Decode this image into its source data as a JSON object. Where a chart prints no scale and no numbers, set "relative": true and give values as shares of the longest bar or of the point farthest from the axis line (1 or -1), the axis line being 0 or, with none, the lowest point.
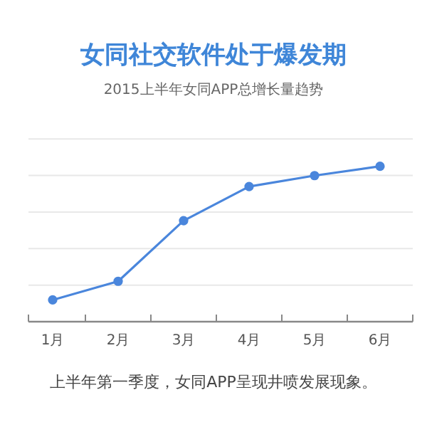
{
  "chart_data": {
    "type": "line",
    "title": "女同社交软件处于爆发期",
    "subtitle": "2015上半年女同APP总增长量趋势",
    "categories": [
      "1月",
      "2月",
      "3月",
      "4月",
      "5月",
      "6月"
    ],
    "series": [
      {
        "color": "#4a86dc",
        "values": [
          0.14,
          0.26,
          0.65,
          0.87,
          0.94,
          1
        ]
      }
    ],
    "relative": true,
    "grid": "y",
    "marker": "circle",
    "line_style": "solid",
    "annotations": [
      "上半年第一季度，女同APP呈现井喷发展现象。"
    ]
  }
}
